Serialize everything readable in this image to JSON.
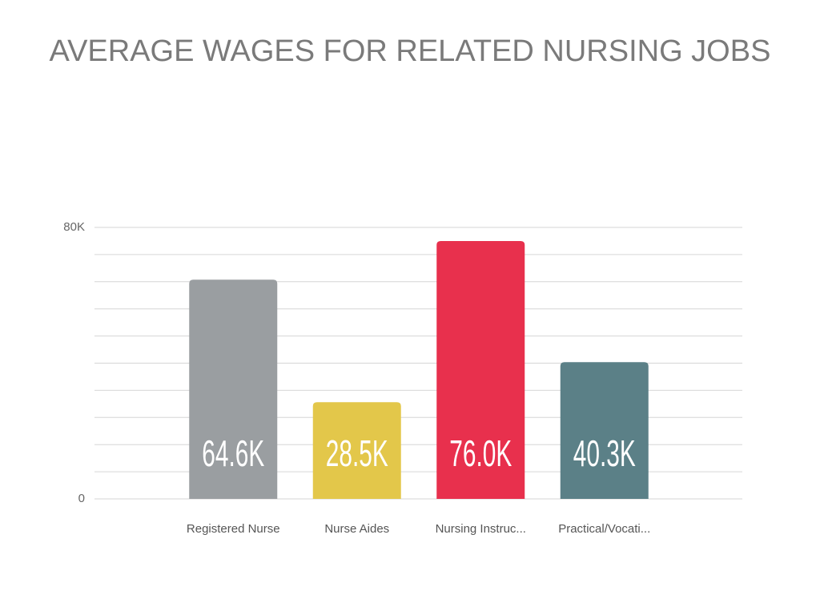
{
  "chart_data": {
    "type": "bar",
    "title": "AVERAGE WAGES FOR RELATED NURSING JOBS",
    "categories": [
      "Registered Nurse",
      "Nurse Aides",
      "Nursing Instruc...",
      "Practical/Vocati..."
    ],
    "values": [
      64600,
      28500,
      76000,
      40300
    ],
    "value_labels": [
      "64.6K",
      "28.5K",
      "76.0K",
      "40.3K"
    ],
    "colors": [
      "#9a9ea1",
      "#e3c74a",
      "#e8304d",
      "#5b8087"
    ],
    "ylim": [
      0,
      80000
    ],
    "yticks": [
      0,
      {
        "value": 80000,
        "label": "80K"
      }
    ],
    "yminorticks": [
      8000,
      16000,
      24000,
      32000,
      40000,
      48000,
      56000,
      64000,
      72000
    ],
    "grid": true
  }
}
